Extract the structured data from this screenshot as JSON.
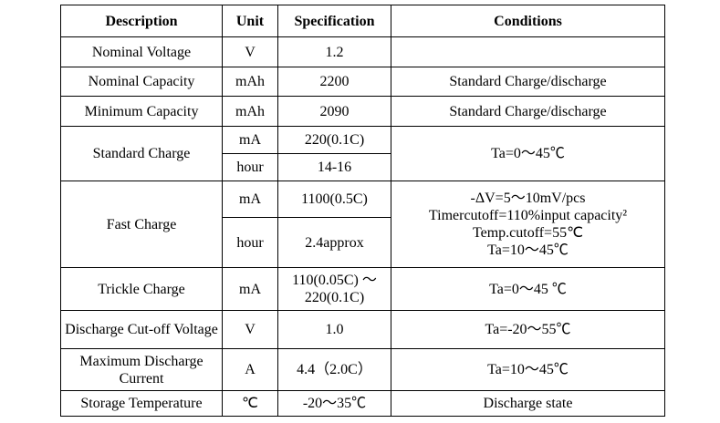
{
  "table": {
    "header": [
      "Description",
      "Unit",
      "Specification",
      "Conditions"
    ],
    "rows": [
      [
        "Nominal Voltage",
        "V",
        "1.2"
      ],
      [
        "Nominal Capacity",
        "mAh",
        "2200",
        "Standard Charge/discharge"
      ],
      [
        "Minimum Capacity",
        "mAh",
        "2090",
        "Standard Charge/discharge"
      ],
      [
        "Standard Charge",
        "mA",
        "220(0.1C)",
        "Ta=0～45℃"
      ],
      [
        "hour",
        "14-16"
      ],
      [
        "Fast Charge",
        "mA",
        "1100(0.5C)",
        [
          "-ΔV=5～10mV/pcs",
          "Timercutoff=110%input capacity²",
          "Temp.cutoff=55℃",
          "Ta=10～45℃"
        ]
      ],
      [
        "hour",
        "2.4approx"
      ],
      [
        "Trickle Charge",
        "mA",
        "110(0.05C) ～ 220(0.1C)",
        "Ta=0～45 ℃"
      ],
      [
        "Discharge Cut-off Voltage",
        "V",
        "1.0",
        "Ta=-20～55℃"
      ],
      [
        "Maximum Discharge Current",
        "A",
        "4.4（2.0C）",
        "Ta=10～45℃"
      ],
      [
        "Storage Temperature",
        "℃",
        "-20～35℃",
        "Discharge state"
      ]
    ]
  }
}
